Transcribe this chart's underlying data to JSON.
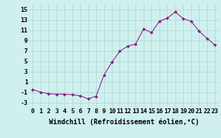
{
  "hours": [
    0,
    1,
    2,
    3,
    4,
    5,
    6,
    7,
    8,
    9,
    10,
    11,
    12,
    13,
    14,
    15,
    16,
    17,
    18,
    19,
    20,
    21,
    22,
    23
  ],
  "values": [
    -0.5,
    -1.0,
    -1.3,
    -1.4,
    -1.4,
    -1.5,
    -1.7,
    -2.3,
    -1.8,
    2.3,
    4.8,
    6.9,
    7.9,
    8.3,
    11.2,
    10.5,
    12.7,
    13.3,
    14.5,
    13.2,
    12.7,
    10.8,
    9.4,
    8.1
  ],
  "xlabel": "Windchill (Refroidissement éolien,°C)",
  "bg_color": "#cff0ee",
  "grid_color": "#b0d8d5",
  "line_color": "#8b1a8b",
  "ylim": [
    -4,
    16
  ],
  "yticks": [
    -3,
    -1,
    1,
    3,
    5,
    7,
    9,
    11,
    13,
    15
  ],
  "xlim": [
    -0.5,
    23.5
  ],
  "xlabel_fontsize": 7.0,
  "tick_fontsize": 6.5
}
